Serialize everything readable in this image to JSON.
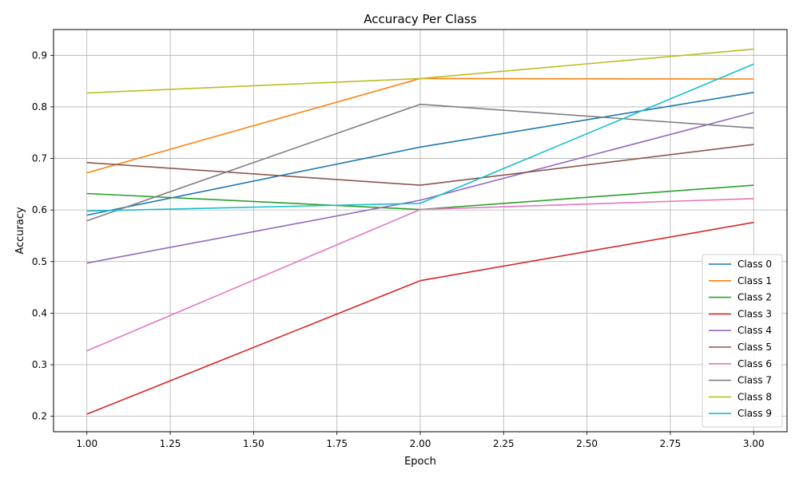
{
  "chart_data": {
    "type": "line",
    "title": "Accuracy Per Class",
    "xlabel": "Epoch",
    "ylabel": "Accuracy",
    "x": [
      1,
      2,
      3
    ],
    "xlim": [
      0.9,
      3.1
    ],
    "ylim": [
      0.17,
      0.95
    ],
    "x_ticks": [
      1.0,
      1.25,
      1.5,
      1.75,
      2.0,
      2.25,
      2.5,
      2.75,
      3.0
    ],
    "x_tick_labels": [
      "1.00",
      "1.25",
      "1.50",
      "1.75",
      "2.00",
      "2.25",
      "2.50",
      "2.75",
      "3.00"
    ],
    "y_ticks": [
      0.2,
      0.3,
      0.4,
      0.5,
      0.6,
      0.7,
      0.8,
      0.9
    ],
    "y_tick_labels": [
      "0.2",
      "0.3",
      "0.4",
      "0.5",
      "0.6",
      "0.7",
      "0.8",
      "0.9"
    ],
    "grid": true,
    "legend_position": "bottom-right",
    "series": [
      {
        "name": "Class 0",
        "color": "#1f77b4",
        "values": [
          0.59,
          0.722,
          0.828
        ]
      },
      {
        "name": "Class 1",
        "color": "#ff7f0e",
        "values": [
          0.672,
          0.855,
          0.854
        ]
      },
      {
        "name": "Class 2",
        "color": "#2ca02c",
        "values": [
          0.632,
          0.601,
          0.648
        ]
      },
      {
        "name": "Class 3",
        "color": "#d62728",
        "values": [
          0.204,
          0.463,
          0.576
        ]
      },
      {
        "name": "Class 4",
        "color": "#9467bd",
        "values": [
          0.497,
          0.619,
          0.789
        ]
      },
      {
        "name": "Class 5",
        "color": "#8c564b",
        "values": [
          0.692,
          0.648,
          0.727
        ]
      },
      {
        "name": "Class 6",
        "color": "#e377c2",
        "values": [
          0.327,
          0.601,
          0.622
        ]
      },
      {
        "name": "Class 7",
        "color": "#7f7f7f",
        "values": [
          0.579,
          0.805,
          0.759
        ]
      },
      {
        "name": "Class 8",
        "color": "#bcbd22",
        "values": [
          0.827,
          0.855,
          0.912
        ]
      },
      {
        "name": "Class 9",
        "color": "#17becf",
        "values": [
          0.598,
          0.613,
          0.883
        ]
      }
    ]
  }
}
